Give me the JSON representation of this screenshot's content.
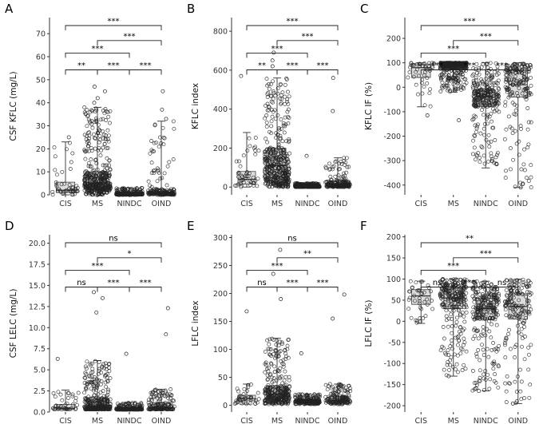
{
  "chart_data": [
    {
      "panel": "A",
      "type": "scatter",
      "ylabel": "CSF KFLC (mg/L)",
      "categories": [
        "CIS",
        "MS",
        "NINDC",
        "OIND"
      ],
      "ylim": [
        0,
        77
      ],
      "yticks": [
        0,
        10,
        20,
        30,
        40,
        50,
        60,
        70
      ],
      "boxes": [
        {
          "category": "CIS",
          "min": 0,
          "q1": 1,
          "median": 2,
          "q3": 5.5,
          "max": 23
        },
        {
          "category": "MS",
          "min": 0,
          "q1": 2.5,
          "median": 5,
          "q3": 10,
          "max": 38
        },
        {
          "category": "NINDC",
          "min": 0,
          "q1": 0.2,
          "median": 0.4,
          "q3": 0.7,
          "max": 3
        },
        {
          "category": "OIND",
          "min": 0,
          "q1": 0.5,
          "median": 1,
          "q3": 2.5,
          "max": 32
        }
      ],
      "points": {
        "CIS": 45,
        "MS": 420,
        "NINDC": 280,
        "OIND": 180
      },
      "outliers": [
        [
          "MS",
          47
        ],
        [
          "MS",
          45
        ],
        [
          "OIND",
          45
        ],
        [
          "OIND",
          37
        ],
        [
          "CIS",
          25
        ],
        [
          "MS",
          42
        ],
        [
          "MS",
          40
        ],
        [
          "OIND",
          33
        ]
      ],
      "comparisons": [
        {
          "from": "CIS",
          "to": "MS",
          "label": "**",
          "level": 1
        },
        {
          "from": "MS",
          "to": "NINDC",
          "label": "***",
          "level": 1
        },
        {
          "from": "NINDC",
          "to": "OIND",
          "label": "***",
          "level": 1
        },
        {
          "from": "CIS",
          "to": "NINDC",
          "label": "***",
          "level": 2
        },
        {
          "from": "MS",
          "to": "OIND",
          "label": "***",
          "level": 3
        },
        {
          "from": "CIS",
          "to": "OIND",
          "label": "***",
          "level": 4
        }
      ]
    },
    {
      "panel": "B",
      "type": "scatter",
      "ylabel": "KFLC index",
      "categories": [
        "CIS",
        "MS",
        "NINDC",
        "OIND"
      ],
      "ylim": [
        -40,
        870
      ],
      "yticks": [
        0,
        200,
        400,
        600,
        800
      ],
      "boxes": [
        {
          "category": "CIS",
          "min": 0,
          "q1": 15,
          "median": 40,
          "q3": 80,
          "max": 280
        },
        {
          "category": "MS",
          "min": 0,
          "q1": 50,
          "median": 110,
          "q3": 200,
          "max": 560
        },
        {
          "category": "NINDC",
          "min": 0,
          "q1": 2,
          "median": 4,
          "q3": 8,
          "max": 20
        },
        {
          "category": "OIND",
          "min": 0,
          "q1": 5,
          "median": 12,
          "q3": 30,
          "max": 150
        }
      ],
      "points": {
        "CIS": 45,
        "MS": 420,
        "NINDC": 280,
        "OIND": 180
      },
      "outliers": [
        [
          "MS",
          690
        ],
        [
          "MS",
          650
        ],
        [
          "CIS",
          570
        ],
        [
          "OIND",
          560
        ],
        [
          "OIND",
          390
        ],
        [
          "NINDC",
          160
        ],
        [
          "MS",
          620
        ]
      ],
      "comparisons": [
        {
          "from": "CIS",
          "to": "MS",
          "label": "**",
          "level": 1
        },
        {
          "from": "MS",
          "to": "NINDC",
          "label": "***",
          "level": 1
        },
        {
          "from": "NINDC",
          "to": "OIND",
          "label": "***",
          "level": 1
        },
        {
          "from": "CIS",
          "to": "NINDC",
          "label": "***",
          "level": 2
        },
        {
          "from": "MS",
          "to": "OIND",
          "label": "***",
          "level": 3
        },
        {
          "from": "CIS",
          "to": "OIND",
          "label": "***",
          "level": 4
        }
      ]
    },
    {
      "panel": "C",
      "type": "scatter",
      "ylabel": "KFLC IF (%)",
      "categories": [
        "CIS",
        "MS",
        "NINDC",
        "OIND"
      ],
      "ylim": [
        -440,
        285
      ],
      "yticks": [
        -400,
        -300,
        -200,
        -100,
        0,
        100,
        200
      ],
      "boxes": [
        {
          "category": "CIS",
          "min": -80,
          "q1": 40,
          "median": 80,
          "q3": 95,
          "max": 100
        },
        {
          "category": "MS",
          "min": -20,
          "q1": 75,
          "median": 90,
          "q3": 97,
          "max": 100
        },
        {
          "category": "NINDC",
          "min": -330,
          "q1": -80,
          "median": -40,
          "q3": -10,
          "max": 100
        },
        {
          "category": "OIND",
          "min": -410,
          "q1": -40,
          "median": 10,
          "q3": 70,
          "max": 100
        }
      ],
      "points": {
        "CIS": 45,
        "MS": 420,
        "NINDC": 280,
        "OIND": 180
      },
      "outliers": [
        [
          "CIS",
          -115
        ],
        [
          "MS",
          -135
        ],
        [
          "OIND",
          -410
        ]
      ],
      "comparisons": [
        {
          "from": "CIS",
          "to": "MS",
          "label": "***",
          "level": 1
        },
        {
          "from": "MS",
          "to": "NINDC",
          "label": "***",
          "level": 1
        },
        {
          "from": "NINDC",
          "to": "OIND",
          "label": "***",
          "level": 1
        },
        {
          "from": "CIS",
          "to": "NINDC",
          "label": "***",
          "level": 2
        },
        {
          "from": "MS",
          "to": "OIND",
          "label": "***",
          "level": 3
        },
        {
          "from": "CIS",
          "to": "OIND",
          "label": "***",
          "level": 4
        }
      ]
    },
    {
      "panel": "D",
      "type": "scatter",
      "ylabel": "CSF LELC (mg/L)",
      "categories": [
        "CIS",
        "MS",
        "NINDC",
        "OIND"
      ],
      "ylim": [
        0,
        21
      ],
      "yticks": [
        0.0,
        2.5,
        5.0,
        7.5,
        10.0,
        12.5,
        15.0,
        17.5,
        20.0
      ],
      "boxes": [
        {
          "category": "CIS",
          "min": 0.3,
          "q1": 0.35,
          "median": 0.45,
          "q3": 0.9,
          "max": 2.6
        },
        {
          "category": "MS",
          "min": 0.3,
          "q1": 0.4,
          "median": 0.7,
          "q3": 1.7,
          "max": 6.1
        },
        {
          "category": "NINDC",
          "min": 0.3,
          "q1": 0.3,
          "median": 0.35,
          "q3": 0.5,
          "max": 1.1
        },
        {
          "category": "OIND",
          "min": 0.3,
          "q1": 0.35,
          "median": 0.5,
          "q3": 1.1,
          "max": 2.7
        }
      ],
      "points": {
        "CIS": 40,
        "MS": 320,
        "NINDC": 220,
        "OIND": 150
      },
      "outliers": [
        [
          "MS",
          14.2
        ],
        [
          "MS",
          13.5
        ],
        [
          "OIND",
          12.3
        ],
        [
          "MS",
          11.8
        ],
        [
          "NINDC",
          6.9
        ],
        [
          "CIS",
          6.3
        ],
        [
          "OIND",
          9.2
        ]
      ],
      "comparisons": [
        {
          "from": "CIS",
          "to": "MS",
          "label": "ns",
          "level": 1
        },
        {
          "from": "MS",
          "to": "NINDC",
          "label": "***",
          "level": 1
        },
        {
          "from": "NINDC",
          "to": "OIND",
          "label": "***",
          "level": 1
        },
        {
          "from": "CIS",
          "to": "NINDC",
          "label": "***",
          "level": 2
        },
        {
          "from": "MS",
          "to": "OIND",
          "label": "*",
          "level": 3
        },
        {
          "from": "CIS",
          "to": "OIND",
          "label": "ns",
          "level": 4
        }
      ]
    },
    {
      "panel": "E",
      "type": "scatter",
      "ylabel": "LFLC index",
      "categories": [
        "CIS",
        "MS",
        "NINDC",
        "OIND"
      ],
      "ylim": [
        -12,
        305
      ],
      "yticks": [
        0,
        50,
        100,
        150,
        200,
        250,
        300
      ],
      "boxes": [
        {
          "category": "CIS",
          "min": 2,
          "q1": 8,
          "median": 12,
          "q3": 18,
          "max": 38
        },
        {
          "category": "MS",
          "min": 2,
          "q1": 12,
          "median": 20,
          "q3": 35,
          "max": 120
        },
        {
          "category": "NINDC",
          "min": 2,
          "q1": 5,
          "median": 7,
          "q3": 10,
          "max": 20
        },
        {
          "category": "OIND",
          "min": 2,
          "q1": 6,
          "median": 9,
          "q3": 16,
          "max": 38
        }
      ],
      "points": {
        "CIS": 40,
        "MS": 320,
        "NINDC": 220,
        "OIND": 150
      },
      "outliers": [
        [
          "MS",
          278
        ],
        [
          "MS",
          235
        ],
        [
          "OIND",
          198
        ],
        [
          "MS",
          190
        ],
        [
          "CIS",
          168
        ],
        [
          "NINDC",
          93
        ],
        [
          "OIND",
          155
        ]
      ],
      "comparisons": [
        {
          "from": "CIS",
          "to": "MS",
          "label": "ns",
          "level": 1
        },
        {
          "from": "MS",
          "to": "NINDC",
          "label": "***",
          "level": 1
        },
        {
          "from": "NINDC",
          "to": "OIND",
          "label": "***",
          "level": 1
        },
        {
          "from": "CIS",
          "to": "NINDC",
          "label": "***",
          "level": 2
        },
        {
          "from": "MS",
          "to": "OIND",
          "label": "**",
          "level": 3
        },
        {
          "from": "CIS",
          "to": "OIND",
          "label": "ns",
          "level": 4
        }
      ]
    },
    {
      "panel": "F",
      "type": "scatter",
      "ylabel": "LFLC IF (%)",
      "categories": [
        "CIS",
        "MS",
        "NINDC",
        "OIND"
      ],
      "ylim": [
        -215,
        205
      ],
      "yticks": [
        -200,
        -150,
        -100,
        -50,
        0,
        50,
        100,
        150,
        200
      ],
      "boxes": [
        {
          "category": "CIS",
          "min": -5,
          "q1": 40,
          "median": 60,
          "q3": 75,
          "max": 95
        },
        {
          "category": "MS",
          "min": -130,
          "q1": 30,
          "median": 55,
          "q3": 78,
          "max": 100
        },
        {
          "category": "NINDC",
          "min": -165,
          "q1": 5,
          "median": 30,
          "q3": 55,
          "max": 95
        },
        {
          "category": "OIND",
          "min": -195,
          "q1": 5,
          "median": 35,
          "q3": 65,
          "max": 100
        }
      ],
      "points": {
        "CIS": 40,
        "MS": 260,
        "NINDC": 260,
        "OIND": 170
      },
      "outliers": [
        [
          "OIND",
          -195
        ],
        [
          "NINDC",
          -165
        ],
        [
          "MS",
          -130
        ]
      ],
      "comparisons": [
        {
          "from": "CIS",
          "to": "MS",
          "label": "ns",
          "level": 1
        },
        {
          "from": "MS",
          "to": "NINDC",
          "label": "***",
          "level": 1
        },
        {
          "from": "NINDC",
          "to": "OIND",
          "label": "ns",
          "level": 1
        },
        {
          "from": "CIS",
          "to": "NINDC",
          "label": "***",
          "level": 2
        },
        {
          "from": "MS",
          "to": "OIND",
          "label": "***",
          "level": 3
        },
        {
          "from": "CIS",
          "to": "OIND",
          "label": "**",
          "level": 4
        }
      ]
    }
  ]
}
